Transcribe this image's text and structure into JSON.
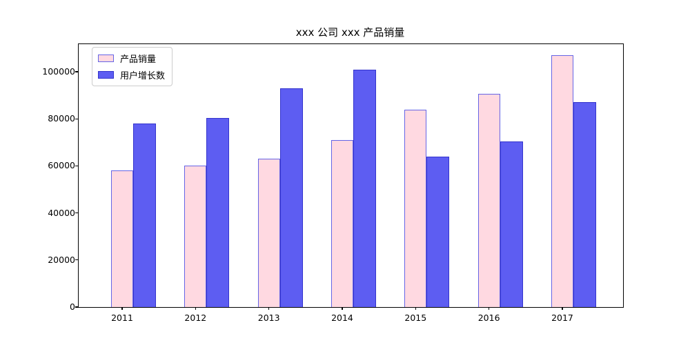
{
  "figure": {
    "title": "xxx 公司 xxx 产品销量"
  },
  "chart_data": {
    "type": "bar",
    "title": "xxx 公司 xxx 产品销量",
    "categories": [
      "2011",
      "2012",
      "2013",
      "2014",
      "2015",
      "2016",
      "2017"
    ],
    "series": [
      {
        "name": "产品销量",
        "values": [
          58000,
          60200,
          63000,
          71000,
          84000,
          90500,
          107000
        ],
        "fill_color": "#ffd9e1",
        "edge_color": "#6464e6"
      },
      {
        "name": "用户增长数",
        "values": [
          78000,
          80480,
          93000,
          101000,
          64000,
          70500,
          87000
        ],
        "fill_color": "#5d5df2",
        "edge_color": "#3333cc"
      }
    ],
    "xlabel": "",
    "ylabel": "",
    "yticks": [
      0,
      20000,
      40000,
      60000,
      80000,
      100000
    ],
    "ylim": [
      0,
      111730
    ],
    "legend_position": "upper left",
    "grid": false
  }
}
